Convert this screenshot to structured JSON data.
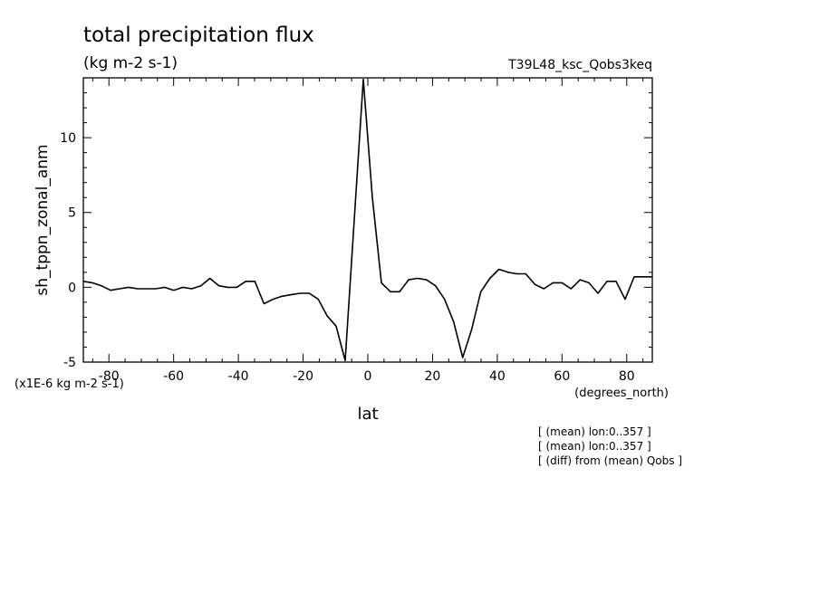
{
  "chart_data": {
    "type": "line",
    "title": "total precipitation flux",
    "subtitle": "(kg m-2 s-1)",
    "experiment": "T39L48_ksc_Qobs3keq",
    "ylabel": "sh_tppn_zonal_anm",
    "xlabel": "lat",
    "x_units": "(degrees_north)",
    "y_units": "(x1E-6 kg m-2 s-1)",
    "xlim": [
      -87.9,
      87.9
    ],
    "ylim": [
      -5,
      14
    ],
    "x_major_ticks": [
      -80,
      -60,
      -40,
      -20,
      0,
      20,
      40,
      60,
      80
    ],
    "x_tick_labels": [
      "-80",
      "-60",
      "-40",
      "-20",
      "0",
      "20",
      "40",
      "60",
      "80"
    ],
    "y_major_ticks": [
      -5,
      0,
      5,
      10
    ],
    "y_tick_labels": [
      "-5",
      "0",
      "5",
      "10"
    ],
    "grid": false,
    "series": [
      {
        "color": "#000000",
        "x": [
          -87.9,
          -85.1,
          -82.3,
          -79.5,
          -76.7,
          -73.9,
          -71.1,
          -68.3,
          -65.6,
          -62.8,
          -60.0,
          -57.2,
          -54.4,
          -51.6,
          -48.8,
          -46.0,
          -43.3,
          -40.5,
          -37.7,
          -34.9,
          -32.1,
          -29.3,
          -26.5,
          -23.7,
          -20.9,
          -18.1,
          -15.3,
          -12.6,
          -9.8,
          -7.0,
          -4.2,
          -1.4,
          1.4,
          4.2,
          7.0,
          9.8,
          12.6,
          15.3,
          18.1,
          20.9,
          23.7,
          26.5,
          29.3,
          32.1,
          34.9,
          37.7,
          40.5,
          43.3,
          46.0,
          48.8,
          51.6,
          54.4,
          57.2,
          60.0,
          62.8,
          65.6,
          68.3,
          71.1,
          73.9,
          76.7,
          79.5,
          82.3,
          85.1,
          87.9
        ],
        "y": [
          0.4,
          0.3,
          0.1,
          -0.2,
          -0.1,
          0.0,
          -0.1,
          -0.1,
          -0.1,
          0.0,
          -0.2,
          0.0,
          -0.1,
          0.1,
          0.6,
          0.1,
          0.0,
          0.0,
          0.4,
          0.4,
          -1.1,
          -0.8,
          -0.6,
          -0.5,
          -0.4,
          -0.4,
          -0.8,
          -1.9,
          -2.6,
          -4.9,
          4.5,
          13.9,
          6.0,
          0.3,
          -0.3,
          -0.3,
          0.5,
          0.6,
          0.5,
          0.1,
          -0.8,
          -2.3,
          -4.7,
          -2.8,
          -0.3,
          0.6,
          1.2,
          1.0,
          0.9,
          0.9,
          0.2,
          -0.1,
          0.3,
          0.3,
          -0.1,
          0.5,
          0.3,
          -0.4,
          0.4,
          0.4,
          -0.8,
          0.7,
          0.7,
          0.7
        ]
      }
    ]
  },
  "annotations": [
    "[ (mean) lon:0..357 ]",
    "[ (mean) lon:0..357 ]",
    "[ (diff) from (mean) Qobs ]"
  ]
}
